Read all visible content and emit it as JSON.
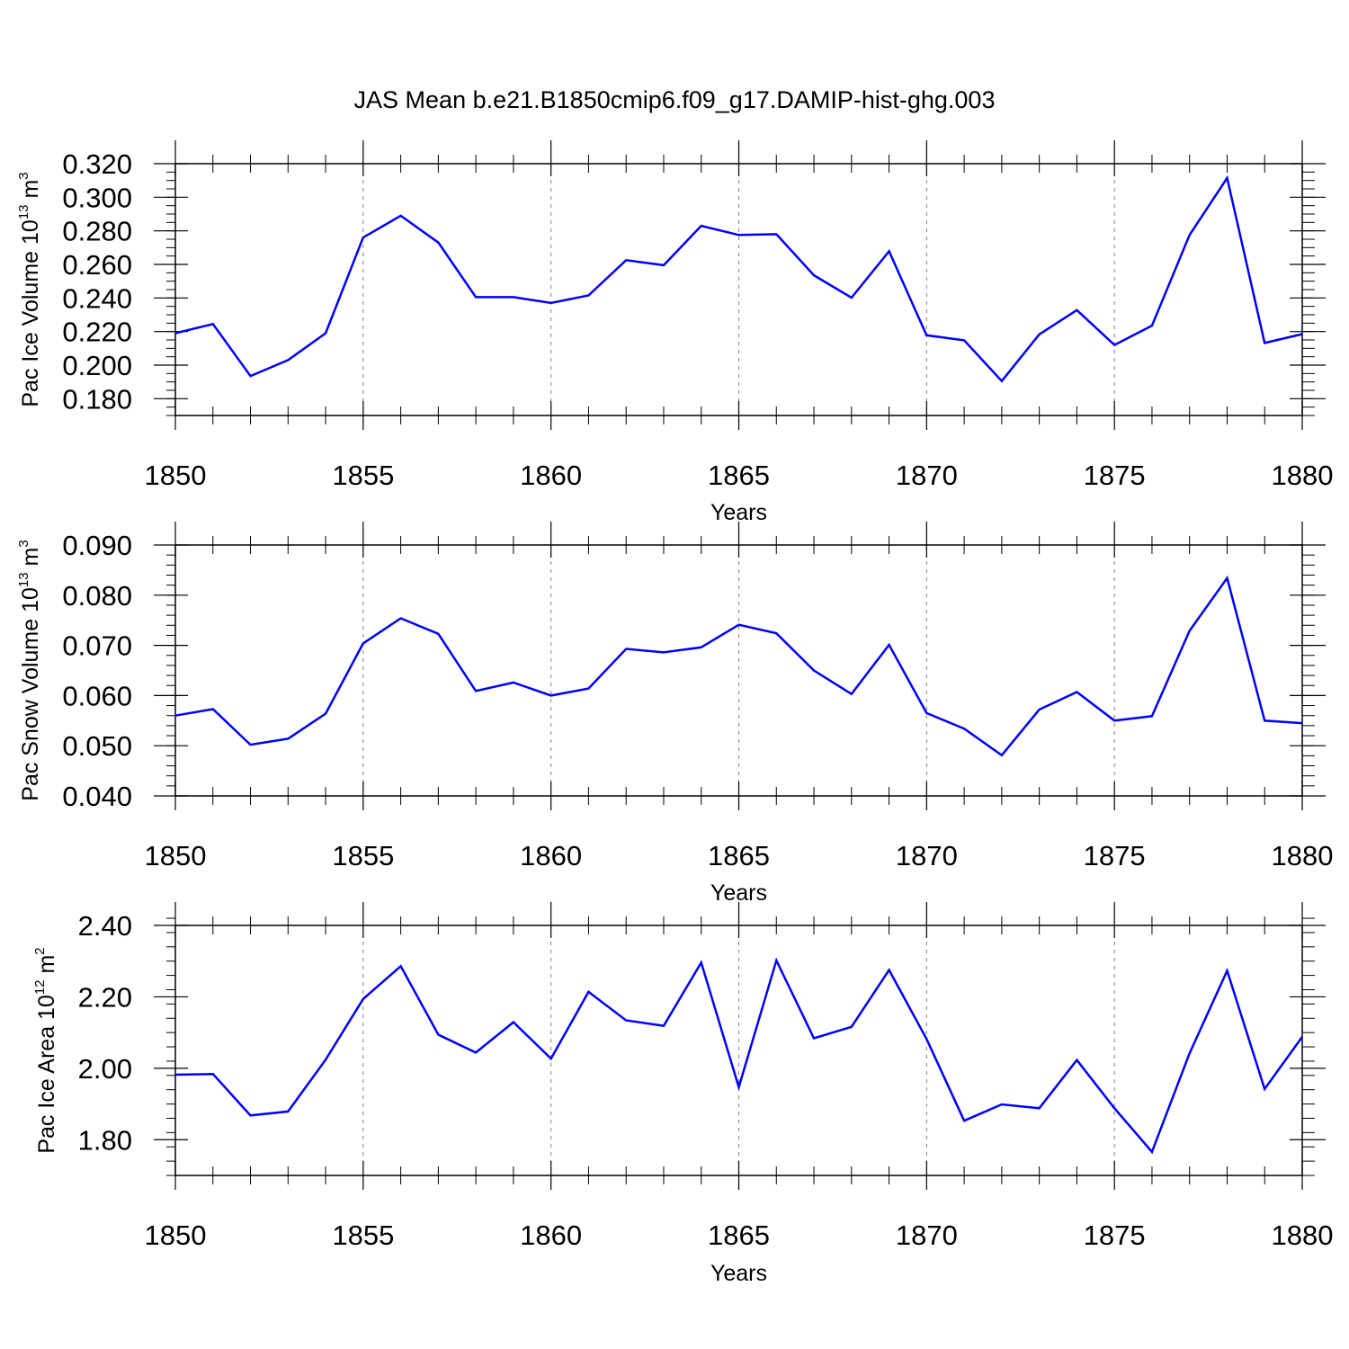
{
  "title": "JAS Mean b.e21.B1850cmip6.f09_g17.DAMIP-hist-ghg.003",
  "colors": {
    "line": "#0000ff",
    "axis": "#000000",
    "grid": "#808080",
    "background": "#ffffff"
  },
  "chart_data": [
    {
      "type": "line",
      "ylabel": "Pac Ice Volume 10",
      "ylabel_sup": "13",
      "ylabel_unit": " m",
      "ylabel_unit_sup": "3",
      "xlabel": "Years",
      "xlim": [
        1850,
        1880
      ],
      "ylim": [
        0.17,
        0.32
      ],
      "y_ticks": [
        "0.180",
        "0.200",
        "0.220",
        "0.240",
        "0.260",
        "0.280",
        "0.300",
        "0.320"
      ],
      "y_tick_values": [
        0.18,
        0.2,
        0.22,
        0.24,
        0.26,
        0.28,
        0.3,
        0.32
      ],
      "y_minor_step": 0.005,
      "x_ticks": [
        "1850",
        "1855",
        "1860",
        "1865",
        "1870",
        "1875",
        "1880"
      ],
      "x_tick_values": [
        1850,
        1855,
        1860,
        1865,
        1870,
        1875,
        1880
      ],
      "grid": "vertical-dashed",
      "series": [
        {
          "x": [
            1850,
            1851,
            1852,
            1853,
            1854,
            1855,
            1856,
            1857,
            1858,
            1859,
            1860,
            1861,
            1862,
            1863,
            1864,
            1865,
            1866,
            1867,
            1868,
            1869,
            1870,
            1871,
            1872,
            1873,
            1874,
            1875,
            1876,
            1877,
            1878,
            1879,
            1880
          ],
          "values": [
            0.219,
            0.2245,
            0.1935,
            0.203,
            0.219,
            0.276,
            0.289,
            0.273,
            0.2405,
            0.2405,
            0.237,
            0.2415,
            0.2625,
            0.2595,
            0.283,
            0.2775,
            0.278,
            0.2535,
            0.2402,
            0.2678,
            0.2178,
            0.2148,
            0.1905,
            0.2183,
            0.2328,
            0.212,
            0.2235,
            0.2775,
            0.3115,
            0.2132,
            0.2185
          ]
        }
      ]
    },
    {
      "type": "line",
      "ylabel": "Pac Snow Volume 10",
      "ylabel_sup": "13",
      "ylabel_unit": " m",
      "ylabel_unit_sup": "3",
      "xlabel": "Years",
      "xlim": [
        1850,
        1880
      ],
      "ylim": [
        0.04,
        0.09
      ],
      "y_ticks": [
        "0.040",
        "0.050",
        "0.060",
        "0.070",
        "0.080",
        "0.090"
      ],
      "y_tick_values": [
        0.04,
        0.05,
        0.06,
        0.07,
        0.08,
        0.09
      ],
      "y_minor_step": 0.002,
      "x_ticks": [
        "1850",
        "1855",
        "1860",
        "1865",
        "1870",
        "1875",
        "1880"
      ],
      "x_tick_values": [
        1850,
        1855,
        1860,
        1865,
        1870,
        1875,
        1880
      ],
      "grid": "vertical-dashed",
      "series": [
        {
          "x": [
            1850,
            1851,
            1852,
            1853,
            1854,
            1855,
            1856,
            1857,
            1858,
            1859,
            1860,
            1861,
            1862,
            1863,
            1864,
            1865,
            1866,
            1867,
            1868,
            1869,
            1870,
            1871,
            1872,
            1873,
            1874,
            1875,
            1876,
            1877,
            1878,
            1879,
            1880
          ],
          "values": [
            0.056,
            0.0573,
            0.0502,
            0.0514,
            0.0564,
            0.0704,
            0.0754,
            0.0723,
            0.0609,
            0.0626,
            0.06,
            0.0614,
            0.0693,
            0.0686,
            0.0696,
            0.0741,
            0.0724,
            0.065,
            0.0603,
            0.0701,
            0.0565,
            0.0534,
            0.0481,
            0.0572,
            0.0607,
            0.055,
            0.0559,
            0.0729,
            0.0834,
            0.055,
            0.0545
          ]
        }
      ]
    },
    {
      "type": "line",
      "ylabel": "Pac Ice Area 10",
      "ylabel_sup": "12",
      "ylabel_unit": " m",
      "ylabel_unit_sup": "2",
      "xlabel": "Years",
      "xlim": [
        1850,
        1880
      ],
      "ylim": [
        1.7,
        2.4
      ],
      "y_ticks": [
        "1.80",
        "2.00",
        "2.20",
        "2.40"
      ],
      "y_tick_values": [
        1.8,
        2.0,
        2.2,
        2.4
      ],
      "y_minor_step": 0.04,
      "x_ticks": [
        "1850",
        "1855",
        "1860",
        "1865",
        "1870",
        "1875",
        "1880"
      ],
      "x_tick_values": [
        1850,
        1855,
        1860,
        1865,
        1870,
        1875,
        1880
      ],
      "grid": "vertical-dashed",
      "series": [
        {
          "x": [
            1850,
            1851,
            1852,
            1853,
            1854,
            1855,
            1856,
            1857,
            1858,
            1859,
            1860,
            1861,
            1862,
            1863,
            1864,
            1865,
            1866,
            1867,
            1868,
            1869,
            1870,
            1871,
            1872,
            1873,
            1874,
            1875,
            1876,
            1877,
            1878,
            1879,
            1880
          ],
          "values": [
            1.982,
            1.984,
            1.868,
            1.879,
            2.024,
            2.194,
            2.286,
            2.094,
            2.044,
            2.129,
            2.027,
            2.214,
            2.134,
            2.119,
            2.296,
            1.947,
            2.302,
            2.084,
            2.116,
            2.275,
            2.082,
            1.853,
            1.899,
            1.888,
            2.023,
            1.888,
            1.766,
            2.042,
            2.273,
            1.942,
            2.088
          ]
        }
      ]
    }
  ]
}
